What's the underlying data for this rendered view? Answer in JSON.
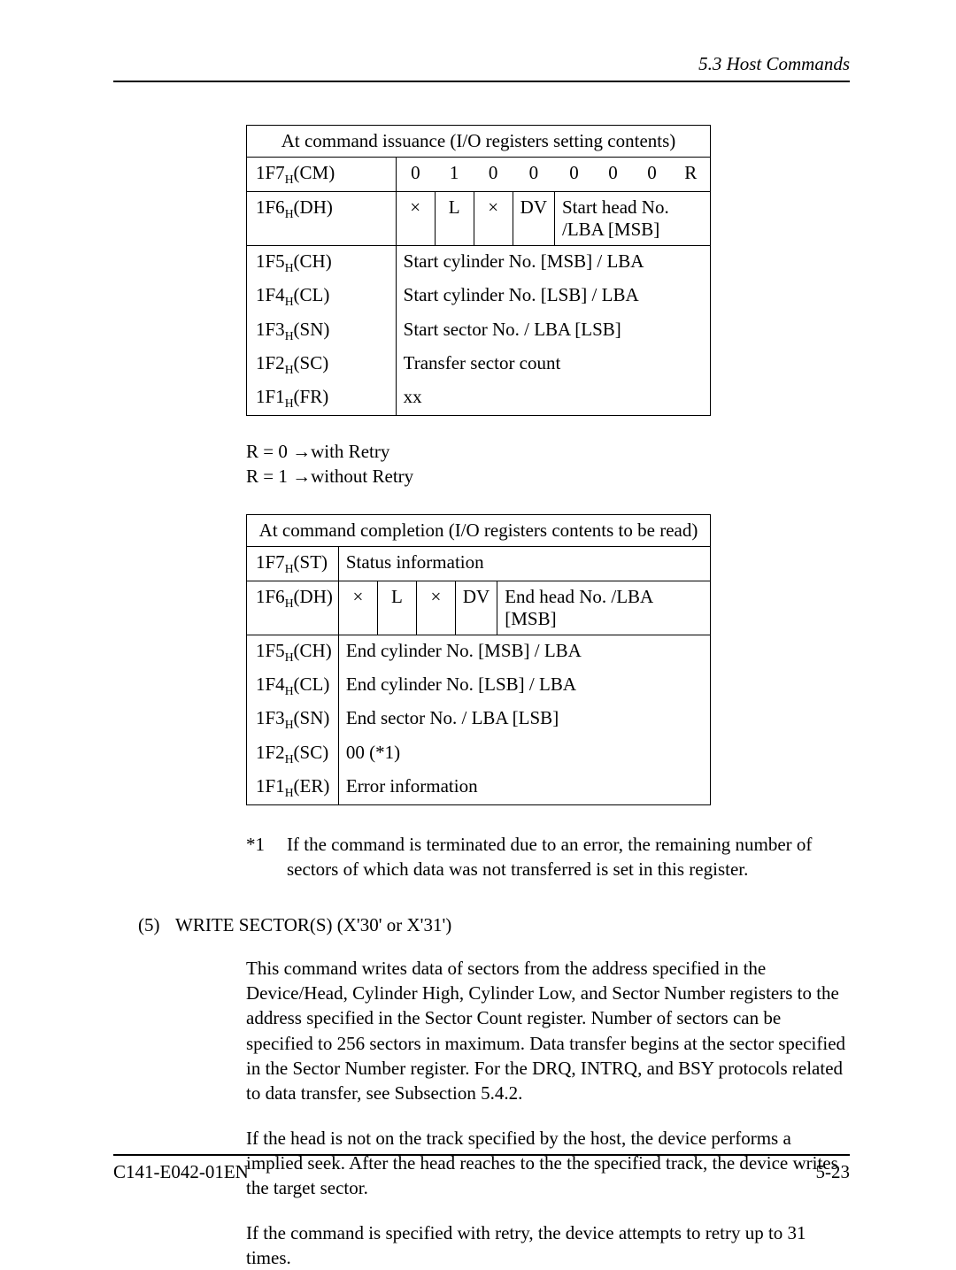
{
  "header": {
    "section": "5.3  Host Commands"
  },
  "footer": {
    "doc": "C141-E042-01EN",
    "page": "5-23"
  },
  "table1": {
    "title": "At command issuance (I/O registers setting contents)",
    "rows": {
      "r1": {
        "reg": "1F7",
        "sub": "H",
        "label": "(CM)",
        "b7": "0",
        "b6": "1",
        "b5": "0",
        "b4": "0",
        "b3": "0",
        "b2": "0",
        "b1": "0",
        "b0": "R"
      },
      "r2": {
        "reg": "1F6",
        "sub": "H",
        "label": "(DH)",
        "b7": "×",
        "b6": "L",
        "b5": "×",
        "b4": "DV",
        "rest": "Start head No. /LBA [MSB]"
      },
      "r3": {
        "reg": "1F5",
        "sub": "H",
        "label": "(CH)",
        "val": "Start cylinder No. [MSB] / LBA"
      },
      "r4": {
        "reg": "1F4",
        "sub": "H",
        "label": "(CL)",
        "val": "Start cylinder No. [LSB] / LBA"
      },
      "r5": {
        "reg": "1F3",
        "sub": "H",
        "label": "(SN)",
        "val": "Start sector No. / LBA [LSB]"
      },
      "r6": {
        "reg": "1F2",
        "sub": "H",
        "label": "(SC)",
        "val": "Transfer sector count"
      },
      "r7": {
        "reg": "1F1",
        "sub": "H",
        "label": "(FR)",
        "val": "xx"
      }
    }
  },
  "retry": {
    "l1": "R = 0 →with Retry",
    "l2": "R = 1 →without Retry"
  },
  "table2": {
    "title": "At command completion (I/O registers contents to be read)",
    "rows": {
      "r1": {
        "reg": "1F7",
        "sub": "H",
        "label": "(ST)",
        "val": "Status information"
      },
      "r2": {
        "reg": "1F6",
        "sub": "H",
        "label": "(DH)",
        "b7": "×",
        "b6": "L",
        "b5": "×",
        "b4": "DV",
        "rest": "End head No. /LBA [MSB]"
      },
      "r3": {
        "reg": "1F5",
        "sub": "H",
        "label": "(CH)",
        "val": "End cylinder No. [MSB] / LBA"
      },
      "r4": {
        "reg": "1F4",
        "sub": "H",
        "label": "(CL)",
        "val": "End cylinder No. [LSB] / LBA"
      },
      "r5": {
        "reg": "1F3",
        "sub": "H",
        "label": "(SN)",
        "val": "End sector No. / LBA [LSB]"
      },
      "r6": {
        "reg": "1F2",
        "sub": "H",
        "label": "(SC)",
        "val": "00 (*1)"
      },
      "r7": {
        "reg": "1F1",
        "sub": "H",
        "label": "(ER)",
        "val": "Error information"
      }
    }
  },
  "star1": {
    "lbl": "*1",
    "txt": "If the command is terminated due to an error, the remaining number of sectors of which data was not transferred is set in this register."
  },
  "section5": {
    "num": "(5)",
    "title": "WRITE SECTOR(S) (X'30' or X'31')"
  },
  "para": {
    "p1": "This command writes data of sectors from the address specified in the Device/Head, Cylinder High, Cylinder Low, and Sector Number registers to the address specified in the Sector Count register.  Number of sectors can be specified to 256 sectors in maximum.  Data transfer begins at the sector specified in the Sector Number register.  For the DRQ, INTRQ, and BSY protocols related to data transfer, see Subsection 5.4.2.",
    "p2": "If the head is not on the track specified by the host, the device performs a implied seek. After the head reaches to the the specified track, the device writes the target sector.",
    "p3": "If the command is specified with retry, the device attempts to retry up to 31 times."
  }
}
